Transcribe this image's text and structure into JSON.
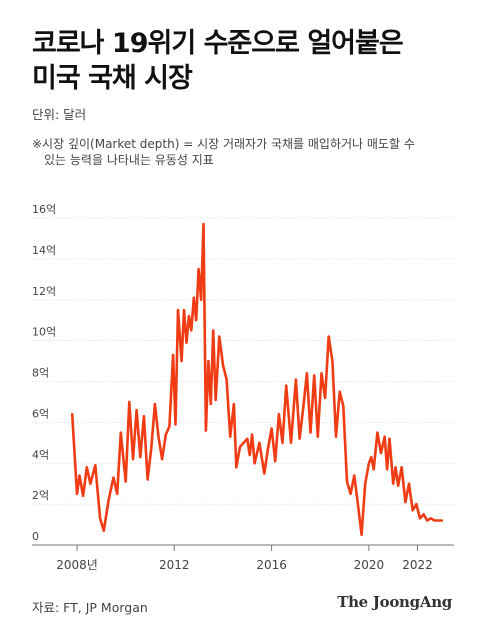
{
  "header": {
    "title_line1": "코로나 19위기 수준으로 얼어붙은",
    "title_line2": "미국 국채 시장",
    "unit": "단위: 달러",
    "note_line1": "※시장 깊이(Market depth) = 시장 거래자가 국채를 매입하거나 매도할 수",
    "note_line2": "있는 능력을 나타내는 유동성 지표"
  },
  "footer": {
    "source": "자료: FT, JP Morgan",
    "brand": "The JoongAng"
  },
  "colors": {
    "line": "#f03c14",
    "grid": "#d9d9d9",
    "axis": "#777777",
    "text": "#444444"
  },
  "chart_data": {
    "type": "line",
    "title": "",
    "xlabel": "",
    "ylabel": "",
    "ylim": [
      0,
      16
    ],
    "xlim": [
      2007.3,
      2023.5
    ],
    "yticks": [
      {
        "value": 0,
        "label": "0"
      },
      {
        "value": 2,
        "label": "2억"
      },
      {
        "value": 4,
        "label": "4억"
      },
      {
        "value": 6,
        "label": "6억"
      },
      {
        "value": 8,
        "label": "8억"
      },
      {
        "value": 10,
        "label": "10억"
      },
      {
        "value": 12,
        "label": "12억"
      },
      {
        "value": 14,
        "label": "14억"
      },
      {
        "value": 16,
        "label": "16억"
      }
    ],
    "xticks": [
      {
        "value": 2008,
        "label": "2008년"
      },
      {
        "value": 2012,
        "label": "2012"
      },
      {
        "value": 2016,
        "label": "2016"
      },
      {
        "value": 2020,
        "label": "2020"
      },
      {
        "value": 2022,
        "label": "2022"
      }
    ],
    "grid": true,
    "series": [
      {
        "name": "",
        "x": [
          2007.8,
          2008.0,
          2008.1,
          2008.25,
          2008.4,
          2008.55,
          2008.75,
          2008.95,
          2009.1,
          2009.3,
          2009.5,
          2009.65,
          2009.8,
          2010.0,
          2010.15,
          2010.3,
          2010.45,
          2010.6,
          2010.75,
          2010.9,
          2011.05,
          2011.2,
          2011.35,
          2011.5,
          2011.65,
          2011.8,
          2011.95,
          2012.05,
          2012.15,
          2012.3,
          2012.4,
          2012.5,
          2012.6,
          2012.7,
          2012.8,
          2012.9,
          2013.0,
          2013.1,
          2013.2,
          2013.3,
          2013.4,
          2013.5,
          2013.6,
          2013.7,
          2013.85,
          2014.0,
          2014.15,
          2014.3,
          2014.45,
          2014.55,
          2014.7,
          2014.85,
          2015.0,
          2015.1,
          2015.2,
          2015.3,
          2015.5,
          2015.7,
          2015.85,
          2016.0,
          2016.15,
          2016.3,
          2016.45,
          2016.6,
          2016.8,
          2017.0,
          2017.15,
          2017.3,
          2017.45,
          2017.6,
          2017.75,
          2017.9,
          2018.05,
          2018.2,
          2018.35,
          2018.5,
          2018.65,
          2018.8,
          2018.95,
          2019.1,
          2019.25,
          2019.4,
          2019.55,
          2019.7,
          2019.85,
          2020.0,
          2020.1,
          2020.2,
          2020.35,
          2020.5,
          2020.65,
          2020.75,
          2020.85,
          2021.0,
          2021.1,
          2021.2,
          2021.35,
          2021.5,
          2021.65,
          2021.8,
          2021.95,
          2022.1,
          2022.25,
          2022.4,
          2022.55,
          2022.7,
          2022.85,
          2023.0
        ],
        "y": [
          6.4,
          2.5,
          3.4,
          2.4,
          3.8,
          3.0,
          3.9,
          1.3,
          0.7,
          2.2,
          3.3,
          2.5,
          5.5,
          3.1,
          7.0,
          4.2,
          6.6,
          4.3,
          6.3,
          3.2,
          4.7,
          6.9,
          5.3,
          4.2,
          5.4,
          5.8,
          9.3,
          5.9,
          11.5,
          9.0,
          11.5,
          9.9,
          11.2,
          10.5,
          12.1,
          11.0,
          13.5,
          12.0,
          15.7,
          5.6,
          9.0,
          6.9,
          10.5,
          7.1,
          10.2,
          8.8,
          8.1,
          5.3,
          6.9,
          3.8,
          4.8,
          5.0,
          5.2,
          4.4,
          5.4,
          4.0,
          5.0,
          3.5,
          4.7,
          5.7,
          4.1,
          6.4,
          5.0,
          7.8,
          5.0,
          8.1,
          5.2,
          6.7,
          8.4,
          5.5,
          8.3,
          5.3,
          8.4,
          7.2,
          10.2,
          9.0,
          5.3,
          7.5,
          6.8,
          3.1,
          2.5,
          3.4,
          2.0,
          0.5,
          3.0,
          4.0,
          4.3,
          3.7,
          5.5,
          4.5,
          5.3,
          3.7,
          5.2,
          3.0,
          3.8,
          2.9,
          3.8,
          2.1,
          3.0,
          1.7,
          2.0,
          1.3,
          1.5,
          1.2,
          1.3,
          1.2,
          1.2,
          1.2
        ]
      }
    ]
  }
}
